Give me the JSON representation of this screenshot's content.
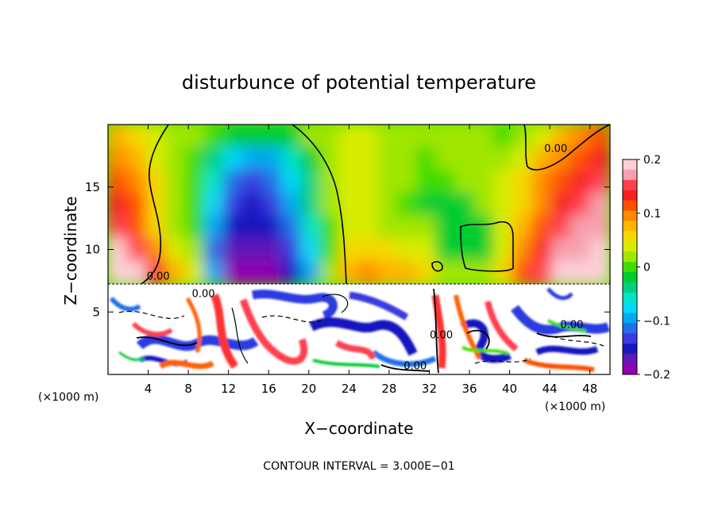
{
  "chart_data": {
    "type": "heatmap",
    "title": "disturbunce of potential temperature",
    "xlabel": "X−coordinate",
    "ylabel": "Z−coordinate",
    "x_unit_left": "(×1000 m)",
    "x_unit_right": "(×1000 m)",
    "footnote": "CONTOUR INTERVAL = 3.000E−01",
    "xlim": [
      0,
      50
    ],
    "ylim": [
      0,
      20
    ],
    "x_ticks": [
      4,
      8,
      12,
      16,
      20,
      24,
      28,
      32,
      36,
      40,
      44,
      48
    ],
    "x_tick_labels": [
      "4",
      "8",
      "12",
      "16",
      "20",
      "24",
      "28",
      "32",
      "36",
      "40",
      "44",
      "48"
    ],
    "y_ticks": [
      5,
      10,
      15
    ],
    "y_tick_labels": [
      "5",
      "10",
      "15"
    ],
    "layer_interface_z": 7.2,
    "contour_labels": [
      {
        "text": "0.00",
        "x": 5,
        "z": 7.6
      },
      {
        "text": "0.00",
        "x": 9.5,
        "z": 6.2
      },
      {
        "text": "0.00",
        "x": 44.6,
        "z": 17.8
      },
      {
        "text": "0.00",
        "x": 46.2,
        "z": 3.7
      },
      {
        "text": "0.00",
        "x": 33.2,
        "z": 2.9
      },
      {
        "text": "0.00",
        "x": 30.6,
        "z": 0.4
      }
    ],
    "colorbar": {
      "min": -0.2,
      "max": 0.2,
      "ticks": [
        0.2,
        0.1,
        0,
        -0.1,
        -0.2
      ],
      "tick_labels": [
        "0.2",
        "0.1",
        "0",
        "−0.1",
        "−0.2"
      ],
      "colors": [
        "#fdd0d8",
        "#f7a0b0",
        "#ff4050",
        "#f52020",
        "#ff5000",
        "#ff8a00",
        "#ffb400",
        "#f5d800",
        "#d8ec00",
        "#a0e600",
        "#40dc00",
        "#00cc30",
        "#00d080",
        "#00e4c8",
        "#00d8f8",
        "#00a8f0",
        "#2070e8",
        "#3a3ae0",
        "#1818c0",
        "#6018b8",
        "#9000b0"
      ]
    },
    "upper_field": {
      "nx": 26,
      "nz": 7,
      "x_range": [
        0,
        50
      ],
      "z_range": [
        7.2,
        20
      ],
      "values": [
        [
          0.08,
          0.06,
          0.04,
          0.02,
          0.01,
          0.0,
          -0.01,
          -0.02,
          -0.02,
          -0.01,
          0.01,
          0.02,
          0.03,
          0.03,
          0.02,
          0.01,
          0.01,
          0.02,
          0.02,
          0.01,
          0.0,
          0.02,
          0.04,
          0.07,
          0.1,
          0.12
        ],
        [
          0.1,
          0.07,
          0.04,
          0.02,
          0.0,
          -0.03,
          -0.07,
          -0.09,
          -0.09,
          -0.06,
          -0.02,
          0.01,
          0.03,
          0.03,
          0.02,
          0.01,
          0.0,
          0.01,
          0.02,
          0.02,
          0.02,
          0.04,
          0.07,
          0.1,
          0.12,
          0.13
        ],
        [
          0.12,
          0.09,
          0.05,
          0.02,
          0.0,
          -0.05,
          -0.11,
          -0.13,
          -0.12,
          -0.08,
          -0.03,
          0.01,
          0.03,
          0.03,
          0.02,
          0.01,
          0.0,
          0.0,
          0.01,
          0.02,
          0.03,
          0.05,
          0.09,
          0.12,
          0.14,
          0.15
        ],
        [
          0.14,
          0.11,
          0.06,
          0.02,
          0.0,
          -0.07,
          -0.13,
          -0.15,
          -0.14,
          -0.1,
          -0.04,
          0.01,
          0.03,
          0.03,
          0.01,
          0.0,
          -0.01,
          -0.01,
          -0.01,
          0.01,
          0.03,
          0.06,
          0.1,
          0.14,
          0.16,
          0.17
        ],
        [
          0.16,
          0.12,
          0.06,
          0.02,
          0.0,
          -0.09,
          -0.15,
          -0.16,
          -0.15,
          -0.11,
          -0.05,
          0.0,
          0.03,
          0.04,
          0.02,
          0.01,
          0.02,
          -0.02,
          -0.02,
          -0.02,
          0.03,
          0.07,
          0.12,
          0.15,
          0.17,
          0.18
        ],
        [
          0.19,
          0.16,
          0.09,
          0.04,
          0.01,
          -0.12,
          -0.17,
          -0.18,
          -0.17,
          -0.13,
          -0.07,
          0.0,
          0.05,
          0.06,
          0.05,
          0.04,
          0.04,
          -0.01,
          -0.02,
          -0.01,
          0.04,
          0.09,
          0.14,
          0.17,
          0.18,
          0.19
        ],
        [
          0.21,
          0.19,
          0.13,
          0.07,
          0.03,
          -0.1,
          -0.19,
          -0.2,
          -0.19,
          -0.16,
          -0.1,
          0.02,
          0.08,
          0.09,
          0.08,
          0.07,
          0.05,
          0.02,
          0.01,
          0.02,
          0.06,
          0.12,
          0.16,
          0.19,
          0.2,
          0.21
        ]
      ]
    }
  }
}
